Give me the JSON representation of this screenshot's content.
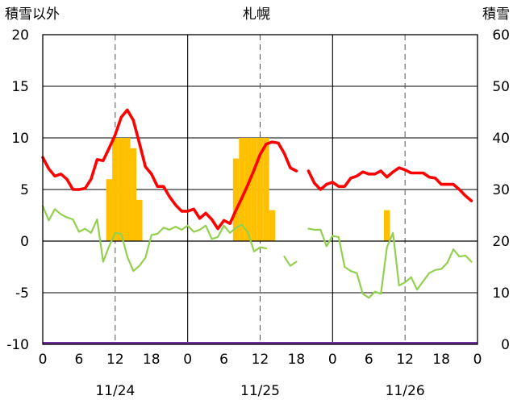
{
  "chart_data": {
    "type": "line",
    "title": "札幌",
    "left_axis_label": "積雪以外",
    "right_axis_label": "積雪",
    "left_ylim": [
      -10,
      20
    ],
    "left_ticks": [
      "20",
      "15",
      "10",
      "5",
      "0",
      "-5",
      "-10"
    ],
    "right_ylim": [
      0,
      60
    ],
    "right_ticks": [
      "60",
      "50",
      "40",
      "30",
      "20",
      "10",
      "0"
    ],
    "x_hour_range": [
      0,
      72
    ],
    "x_tick_hours": [
      0,
      6,
      12,
      18,
      24,
      30,
      36,
      42,
      48,
      54,
      60,
      66,
      72
    ],
    "x_tick_labels": [
      "0",
      "6",
      "12",
      "18",
      "0",
      "6",
      "12",
      "18",
      "0",
      "6",
      "12",
      "18",
      "0"
    ],
    "date_labels": [
      {
        "hour": 12,
        "text": "11/24"
      },
      {
        "hour": 36,
        "text": "11/25"
      },
      {
        "hour": 60,
        "text": "11/26"
      }
    ],
    "day_boundary_hours": [
      24,
      48
    ],
    "dashed_hours": [
      12,
      36,
      60
    ],
    "colors": {
      "temperature": "#ff0000",
      "secondary": "#92d050",
      "precipitation": "#ffc000",
      "snow_depth": "#7030a0"
    },
    "series": [
      {
        "key": "temperature",
        "points": [
          [
            0,
            8.1
          ],
          [
            1,
            7.0
          ],
          [
            2,
            6.3
          ],
          [
            3,
            6.5
          ],
          [
            4,
            6.0
          ],
          [
            5,
            5.0
          ],
          [
            6,
            5.0
          ],
          [
            7,
            5.1
          ],
          [
            8,
            6.0
          ],
          [
            9,
            7.9
          ],
          [
            10,
            7.8
          ],
          [
            11,
            9.0
          ],
          [
            12,
            10.3
          ],
          [
            13,
            12.0
          ],
          [
            14,
            12.7
          ],
          [
            15,
            11.7
          ],
          [
            16,
            9.5
          ],
          [
            17,
            7.2
          ],
          [
            18,
            6.5
          ],
          [
            19,
            5.3
          ],
          [
            20,
            5.3
          ],
          [
            21,
            4.3
          ],
          [
            22,
            3.5
          ],
          [
            23,
            2.9
          ],
          [
            24,
            2.9
          ],
          [
            25,
            3.1
          ],
          [
            26,
            2.2
          ],
          [
            27,
            2.7
          ],
          [
            28,
            2.1
          ],
          [
            29,
            1.2
          ],
          [
            30,
            2.0
          ],
          [
            31,
            1.7
          ],
          [
            32,
            3.0
          ],
          [
            33,
            4.2
          ],
          [
            34,
            5.5
          ],
          [
            35,
            6.9
          ],
          [
            36,
            8.4
          ],
          [
            37,
            9.4
          ],
          [
            38,
            9.6
          ],
          [
            39,
            9.5
          ],
          [
            40,
            8.5
          ],
          [
            41,
            7.1
          ],
          [
            42,
            6.8
          ],
          null,
          [
            44,
            6.8
          ],
          [
            45,
            5.6
          ],
          [
            46,
            5.0
          ],
          [
            47,
            5.5
          ],
          [
            48,
            5.7
          ],
          [
            49,
            5.3
          ],
          [
            50,
            5.3
          ],
          [
            51,
            6.1
          ],
          [
            52,
            6.3
          ],
          [
            53,
            6.7
          ],
          [
            54,
            6.5
          ],
          [
            55,
            6.5
          ],
          [
            56,
            6.8
          ],
          [
            57,
            6.2
          ],
          [
            58,
            6.7
          ],
          [
            59,
            7.1
          ],
          [
            60,
            6.9
          ],
          [
            61,
            6.6
          ],
          [
            62,
            6.6
          ],
          [
            63,
            6.6
          ],
          [
            64,
            6.2
          ],
          [
            65,
            6.1
          ],
          [
            66,
            5.5
          ],
          [
            67,
            5.5
          ],
          [
            68,
            5.5
          ],
          [
            69,
            5.0
          ],
          [
            70,
            4.4
          ],
          [
            71,
            3.9
          ]
        ]
      },
      {
        "key": "secondary",
        "points": [
          [
            0,
            3.4
          ],
          [
            1,
            2.0
          ],
          [
            2,
            3.1
          ],
          [
            3,
            2.6
          ],
          [
            4,
            2.3
          ],
          [
            5,
            2.1
          ],
          [
            6,
            0.9
          ],
          [
            7,
            1.2
          ],
          [
            8,
            0.8
          ],
          [
            9,
            2.1
          ],
          [
            10,
            -2.0
          ],
          [
            11,
            -0.5
          ],
          [
            12,
            0.8
          ],
          [
            13,
            0.7
          ],
          [
            14,
            -1.5
          ],
          [
            15,
            -2.9
          ],
          [
            16,
            -2.4
          ],
          [
            17,
            -1.6
          ],
          [
            18,
            0.6
          ],
          [
            19,
            0.7
          ],
          [
            20,
            1.3
          ],
          [
            21,
            1.1
          ],
          [
            22,
            1.4
          ],
          [
            23,
            1.1
          ],
          [
            24,
            1.5
          ],
          [
            25,
            0.9
          ],
          [
            26,
            1.1
          ],
          [
            27,
            1.5
          ],
          [
            28,
            0.2
          ],
          [
            29,
            0.4
          ],
          [
            30,
            1.5
          ],
          [
            31,
            0.8
          ],
          [
            32,
            1.3
          ],
          [
            33,
            1.6
          ],
          [
            34,
            0.8
          ],
          [
            35,
            -1.0
          ],
          [
            36,
            -0.6
          ],
          [
            37,
            -0.7
          ],
          null,
          [
            40,
            -1.5
          ],
          [
            41,
            -2.4
          ],
          [
            42,
            -2.0
          ],
          null,
          [
            44,
            1.2
          ],
          [
            45,
            1.1
          ],
          [
            46,
            1.1
          ],
          [
            47,
            -0.5
          ],
          [
            48,
            0.5
          ],
          [
            49,
            0.4
          ],
          [
            50,
            -2.5
          ],
          [
            51,
            -2.9
          ],
          [
            52,
            -3.1
          ],
          [
            53,
            -5.1
          ],
          [
            54,
            -5.5
          ],
          [
            55,
            -4.9
          ],
          [
            56,
            -5.1
          ],
          [
            57,
            -0.6
          ],
          [
            58,
            0.8
          ],
          [
            59,
            -4.3
          ],
          [
            60,
            -4.0
          ],
          [
            61,
            -3.5
          ],
          [
            62,
            -4.7
          ],
          [
            63,
            -3.9
          ],
          [
            64,
            -3.1
          ],
          [
            65,
            -2.8
          ],
          [
            66,
            -2.7
          ],
          [
            67,
            -2.1
          ],
          [
            68,
            -0.8
          ],
          [
            69,
            -1.5
          ],
          [
            70,
            -1.4
          ],
          [
            71,
            -2.0
          ]
        ]
      }
    ],
    "precipitation_bars": [
      {
        "hour": 11,
        "value": 6.0
      },
      {
        "hour": 12,
        "value": 10.0
      },
      {
        "hour": 13,
        "value": 10.0
      },
      {
        "hour": 14,
        "value": 10.0
      },
      {
        "hour": 15,
        "value": 9.0
      },
      {
        "hour": 16,
        "value": 4.0
      },
      {
        "hour": 32,
        "value": 8.0
      },
      {
        "hour": 33,
        "value": 10.0
      },
      {
        "hour": 34,
        "value": 10.0
      },
      {
        "hour": 35,
        "value": 10.0
      },
      {
        "hour": 36,
        "value": 10.0
      },
      {
        "hour": 37,
        "value": 10.0
      },
      {
        "hour": 38,
        "value": 3.0
      },
      {
        "hour": 57,
        "value": 3.0
      }
    ],
    "snow_depth": {
      "start_hour": 0,
      "end_hour": 72,
      "value": 0
    }
  }
}
